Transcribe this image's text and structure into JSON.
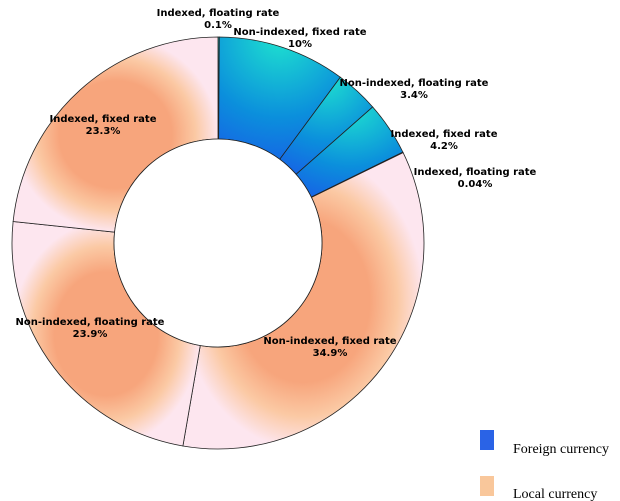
{
  "chart_data": {
    "type": "pie",
    "variant": "donut",
    "title": "",
    "slices": [
      {
        "label": "Indexed, floating rate",
        "value": 0.1,
        "value_label": "0.1%",
        "group": "Foreign currency"
      },
      {
        "label": "Non-indexed, fixed rate",
        "value": 10,
        "value_label": "10%",
        "group": "Foreign currency"
      },
      {
        "label": "Non-indexed, floating rate",
        "value": 3.4,
        "value_label": "3.4%",
        "group": "Foreign currency"
      },
      {
        "label": "Indexed, fixed rate",
        "value": 4.2,
        "value_label": "4.2%",
        "group": "Foreign currency"
      },
      {
        "label": "Indexed, floating rate",
        "value": 0.04,
        "value_label": "0.04%",
        "group": "Foreign currency"
      },
      {
        "label": "Non-indexed, fixed rate",
        "value": 34.9,
        "value_label": "34.9%",
        "group": "Local currency"
      },
      {
        "label": "Non-indexed, floating rate",
        "value": 23.9,
        "value_label": "23.9%",
        "group": "Local currency"
      },
      {
        "label": "Indexed, fixed rate",
        "value": 23.3,
        "value_label": "23.3%",
        "group": "Local currency"
      }
    ],
    "start_angle": "12 o'clock",
    "direction": "clockwise",
    "legend": {
      "placement": "bottom-right",
      "entries": [
        {
          "name": "Foreign currency",
          "color": "#2a63e6"
        },
        {
          "name": "Local currency",
          "color": "#f9c79b"
        }
      ]
    }
  }
}
